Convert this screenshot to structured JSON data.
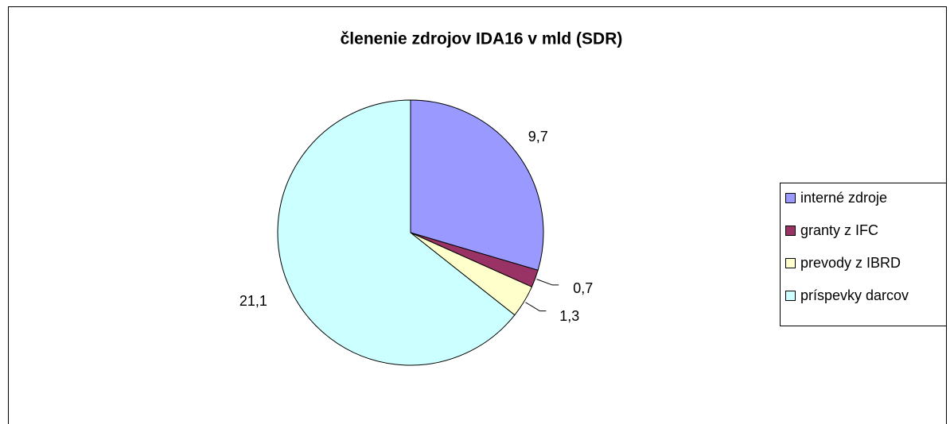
{
  "chart_data": {
    "type": "pie",
    "title": "členenie zdrojov IDA16 v mld (SDR)",
    "categories": [
      "interné zdroje",
      "granty z IFC",
      "prevody z IBRD",
      "príspevky darcov"
    ],
    "values": [
      9.7,
      0.7,
      1.3,
      21.1
    ],
    "value_labels": [
      "9,7",
      "0,7",
      "1,3",
      "21,1"
    ],
    "colors": [
      "#9999ff",
      "#993366",
      "#ffffcc",
      "#ccffff"
    ],
    "legend": "right"
  }
}
